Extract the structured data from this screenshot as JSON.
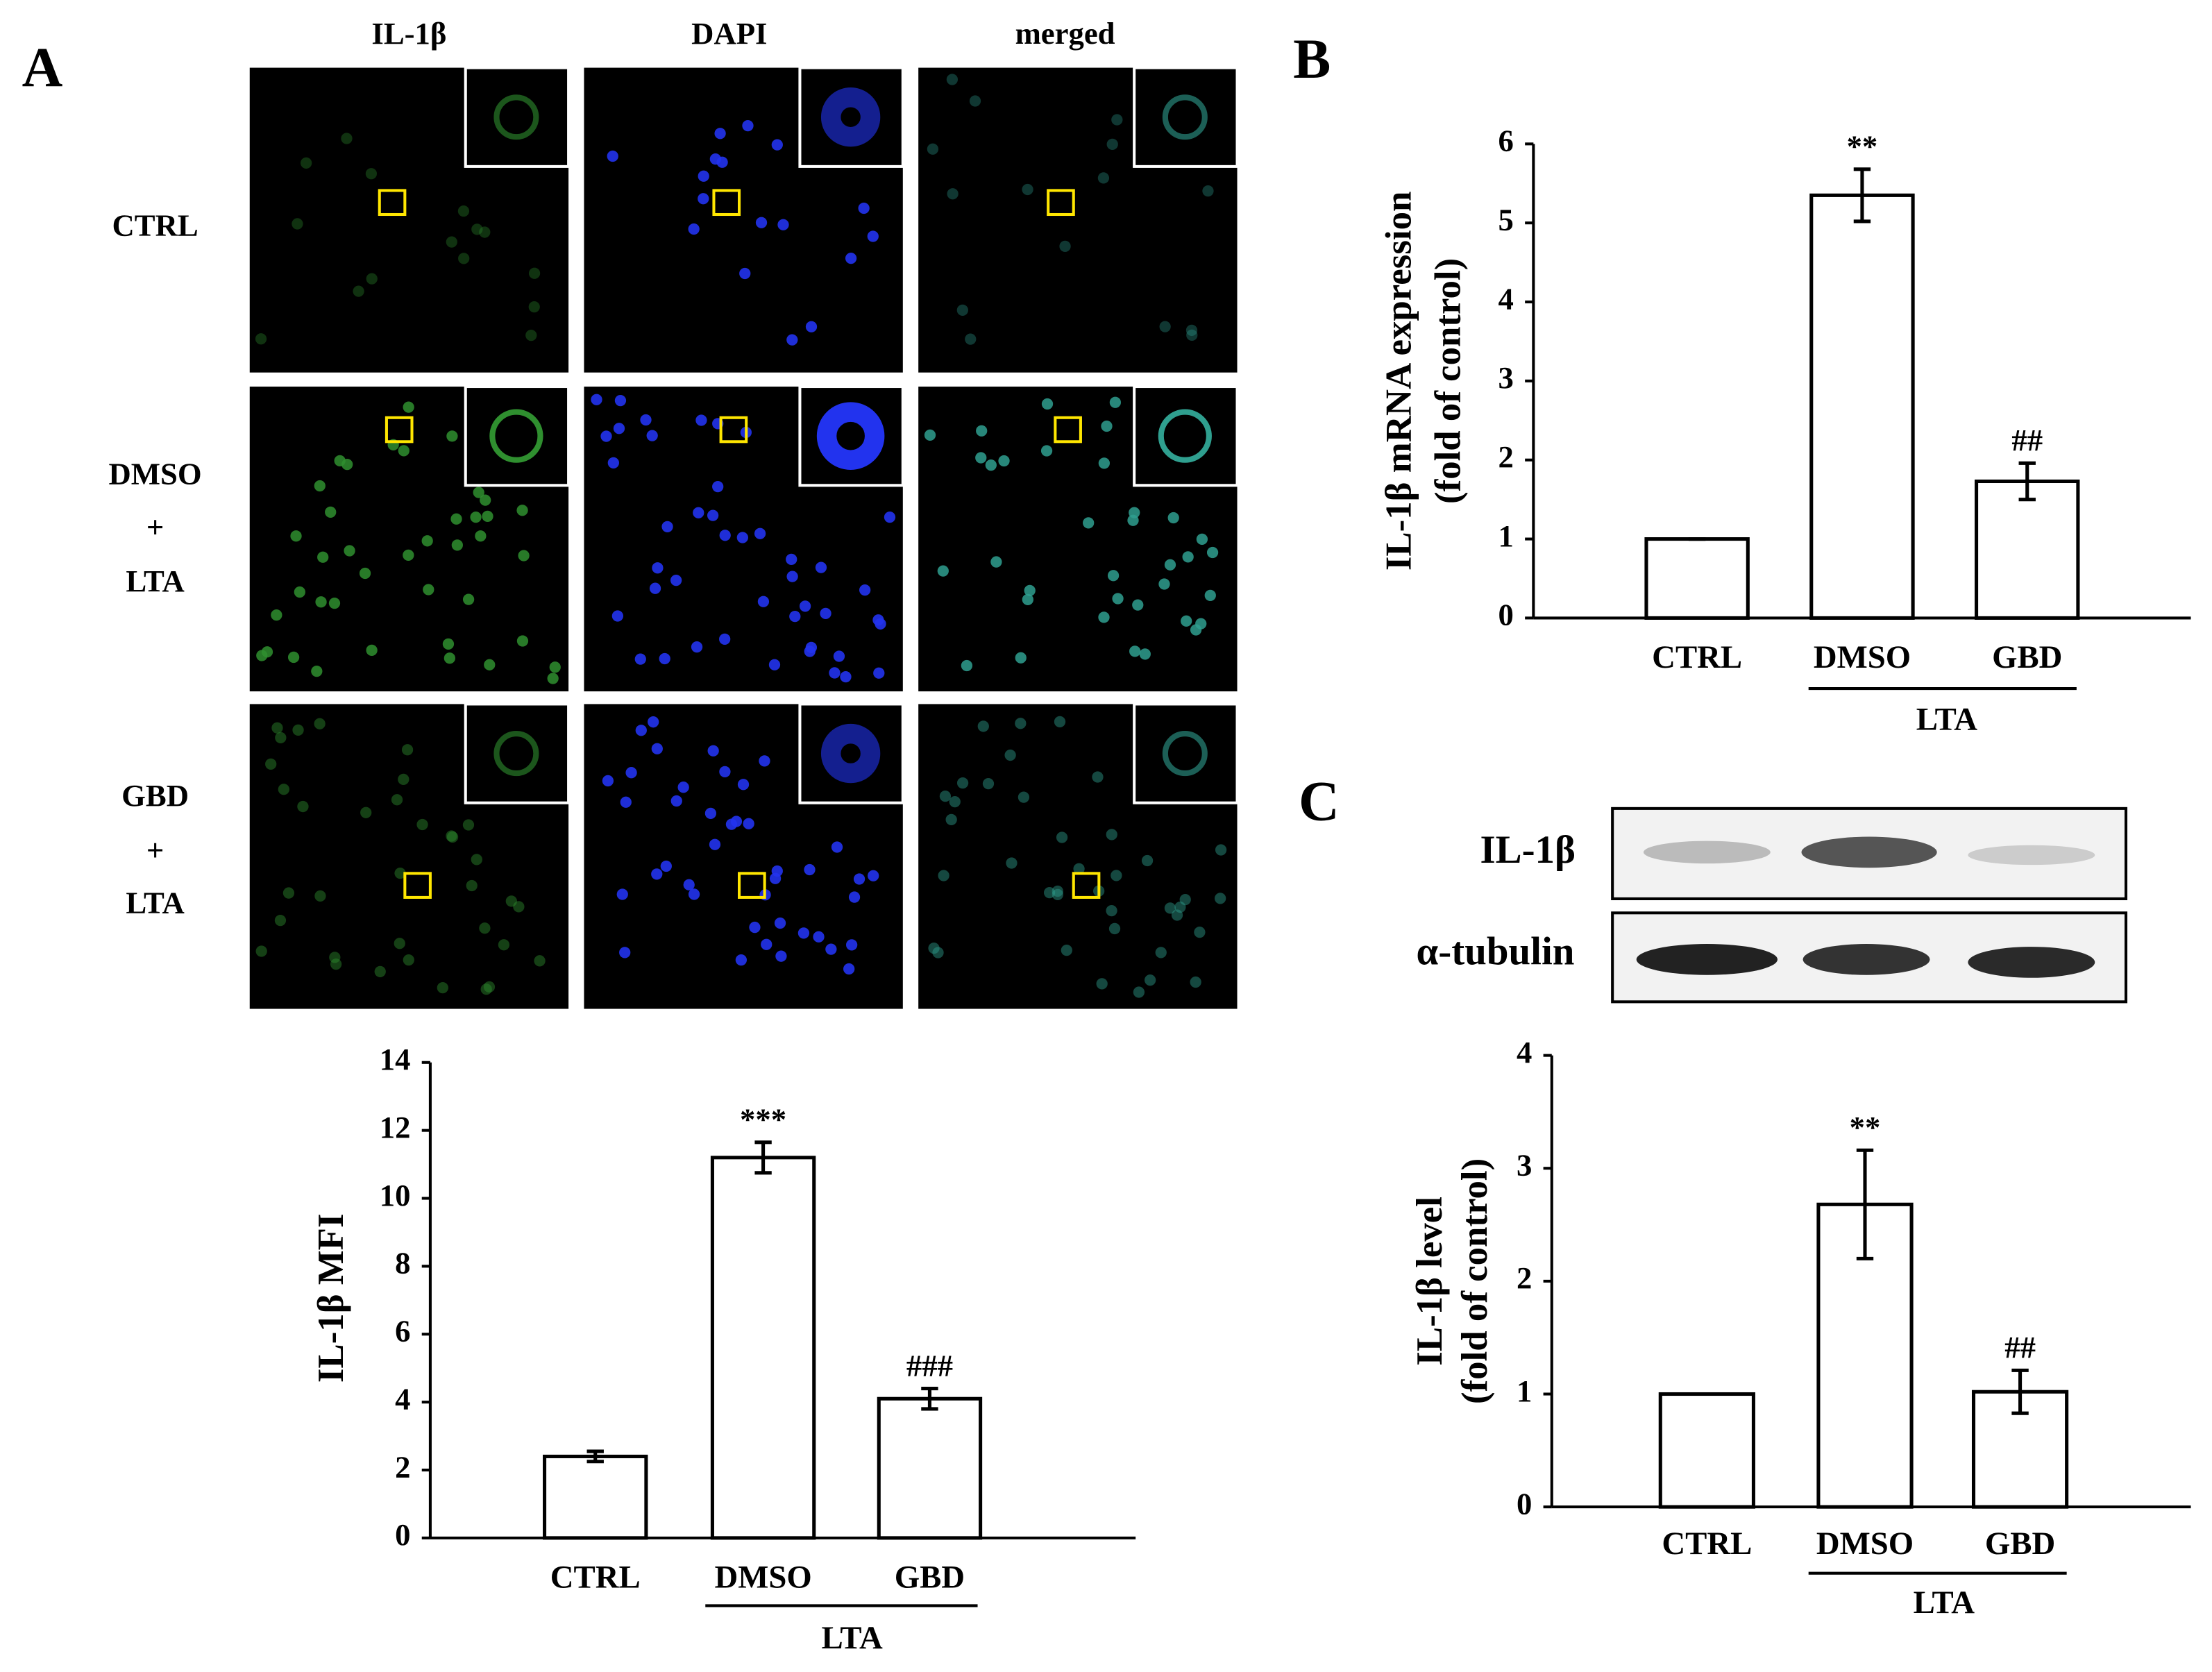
{
  "panel_labels": [
    "A",
    "B",
    "C"
  ],
  "microscopy": {
    "columns": [
      "IL-1β",
      "DAPI",
      "merged"
    ],
    "rows": [
      [
        "CTRL"
      ],
      [
        "DMSO",
        "+",
        "LTA"
      ],
      [
        "GBD",
        "+",
        "LTA"
      ]
    ]
  },
  "blot": {
    "bands": [
      "IL-1β",
      "α-tubulin"
    ]
  },
  "chart_data": [
    {
      "type": "bar",
      "ylabel": [
        "IL-1β MFI"
      ],
      "categories": [
        "CTRL",
        "DMSO",
        "GBD"
      ],
      "values": [
        2.4,
        11.2,
        4.1
      ],
      "errors": [
        0.15,
        0.45,
        0.3
      ],
      "annotations": [
        null,
        "***",
        "###"
      ],
      "group_label": "LTA",
      "color": "#ffffff",
      "ylim": [
        0,
        14
      ],
      "yticks": [
        0,
        2,
        4,
        6,
        8,
        10,
        12,
        14
      ]
    },
    {
      "type": "bar",
      "ylabel": [
        "IL-1β mRNA expression",
        "(fold of control)"
      ],
      "categories": [
        "CTRL",
        "DMSO",
        "GBD"
      ],
      "values": [
        1,
        5.35,
        1.73
      ],
      "errors": [
        0,
        0.33,
        0.23
      ],
      "annotations": [
        null,
        "**",
        "##"
      ],
      "group_label": "LTA",
      "color": "#ffffff",
      "ylim": [
        0,
        6
      ],
      "yticks": [
        0,
        1,
        2,
        3,
        4,
        5,
        6
      ]
    },
    {
      "type": "bar",
      "ylabel": [
        "IL-1β level",
        "(fold of control)"
      ],
      "categories": [
        "CTRL",
        "DMSO",
        "GBD"
      ],
      "values": [
        1,
        2.68,
        1.02
      ],
      "errors": [
        0,
        0.48,
        0.19
      ],
      "annotations": [
        null,
        "**",
        "##"
      ],
      "group_label": "LTA",
      "color": "#ffffff",
      "ylim": [
        0,
        4
      ],
      "yticks": [
        0,
        1,
        2,
        3,
        4
      ]
    }
  ]
}
